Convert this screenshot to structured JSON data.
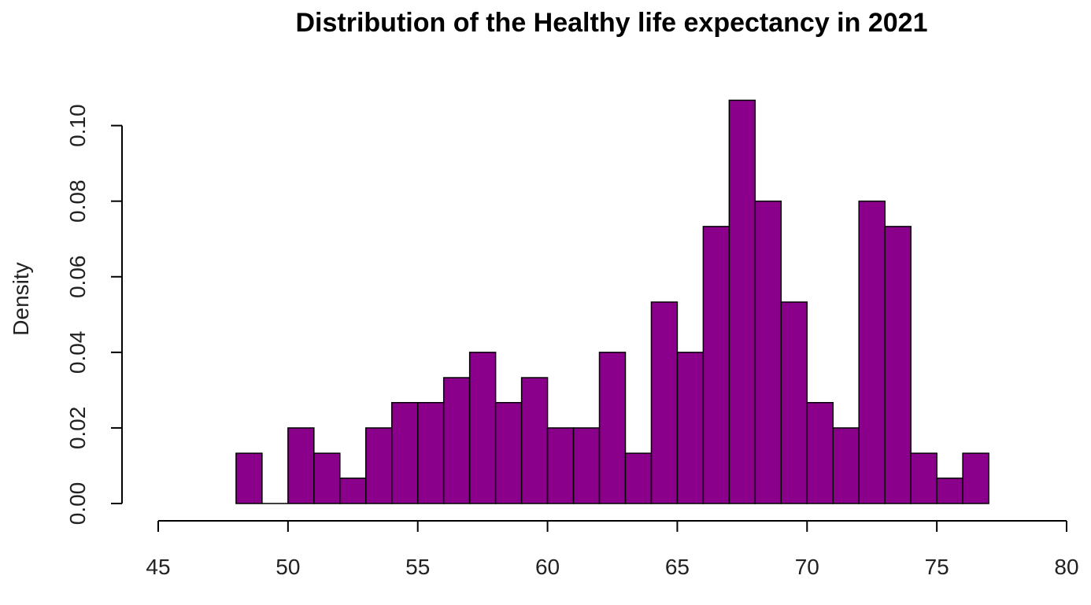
{
  "chart_data": {
    "type": "bar",
    "subtype": "histogram",
    "title": "Distribution of the Healthy life expectancy in 2021",
    "xlabel": "",
    "ylabel": "Density",
    "xlim": [
      45,
      80
    ],
    "ylim": [
      0,
      0.107
    ],
    "x_ticks": [
      45,
      50,
      55,
      60,
      65,
      70,
      75,
      80
    ],
    "x_tick_labels": [
      "45",
      "50",
      "55",
      "60",
      "65",
      "70",
      "75",
      "80"
    ],
    "y_ticks": [
      0,
      0.02,
      0.04,
      0.06,
      0.08,
      0.1
    ],
    "y_tick_labels": [
      "0.00",
      "0.02",
      "0.04",
      "0.06",
      "0.08",
      "0.10"
    ],
    "bin_width": 1,
    "bin_edges": [
      48,
      49,
      50,
      51,
      52,
      53,
      54,
      55,
      56,
      57,
      58,
      59,
      60,
      61,
      62,
      63,
      64,
      65,
      66,
      67,
      68,
      69,
      70,
      71,
      72,
      73,
      74,
      75,
      76,
      77
    ],
    "values": [
      0.0133,
      0.0,
      0.02,
      0.0133,
      0.0067,
      0.02,
      0.0267,
      0.0267,
      0.0333,
      0.04,
      0.0267,
      0.0333,
      0.02,
      0.02,
      0.04,
      0.0133,
      0.0533,
      0.04,
      0.0733,
      0.1067,
      0.08,
      0.0533,
      0.0267,
      0.02,
      0.08,
      0.0733,
      0.0133,
      0.0067,
      0.0133
    ],
    "grid": false,
    "legend": "none",
    "colors": {
      "bar_fill": "#8B008B",
      "bar_border": "#000000",
      "axis": "#000000",
      "text": "#000000"
    }
  }
}
